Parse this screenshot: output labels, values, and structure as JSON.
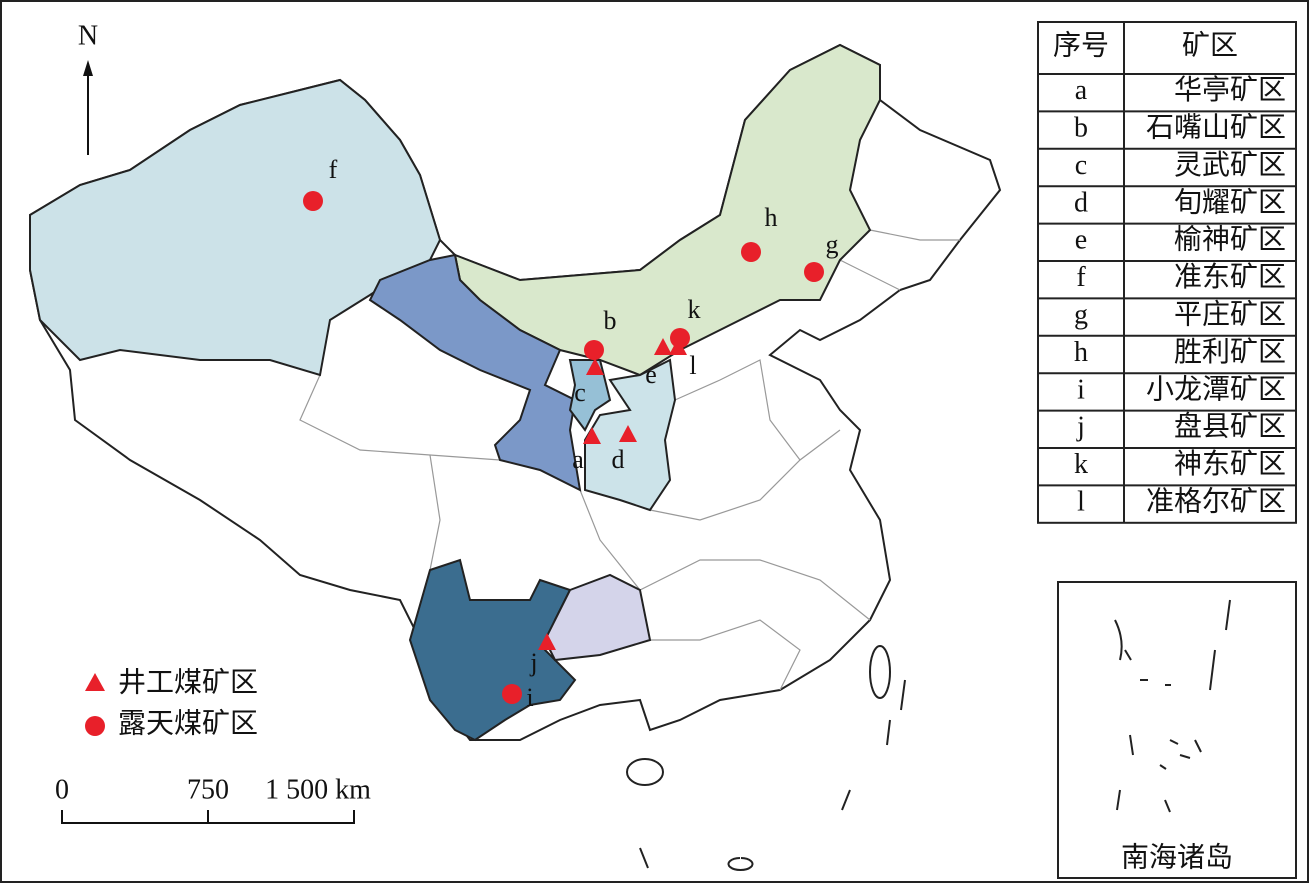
{
  "north": "N",
  "table": {
    "header": [
      "序号",
      "矿区"
    ],
    "rows": [
      [
        "a",
        "华亭矿区"
      ],
      [
        "b",
        "石嘴山矿区"
      ],
      [
        "c",
        "灵武矿区"
      ],
      [
        "d",
        "旬耀矿区"
      ],
      [
        "e",
        "榆神矿区"
      ],
      [
        "f",
        "准东矿区"
      ],
      [
        "g",
        "平庄矿区"
      ],
      [
        "h",
        "胜利矿区"
      ],
      [
        "i",
        "小龙潭矿区"
      ],
      [
        "j",
        "盘县矿区"
      ],
      [
        "k",
        "神东矿区"
      ],
      [
        "l",
        "准格尔矿区"
      ]
    ]
  },
  "legend": [
    "井工煤矿区",
    "露天煤矿区"
  ],
  "scale_bar": {
    "ticks": [
      0,
      750,
      {
        "value": 1500,
        "label": "1 500 km"
      }
    ]
  },
  "inset_title": "南海诸岛"
}
